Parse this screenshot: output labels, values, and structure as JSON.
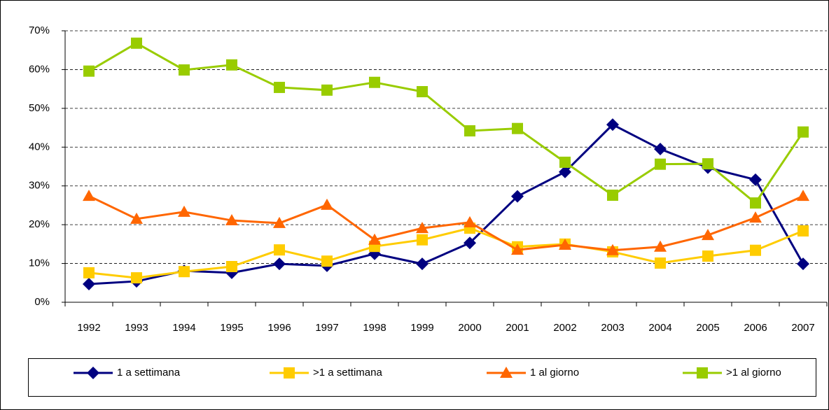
{
  "chart_data": {
    "type": "line",
    "categories": [
      "1992",
      "1993",
      "1994",
      "1995",
      "1996",
      "1997",
      "1998",
      "1999",
      "2000",
      "2001",
      "2002",
      "2003",
      "2004",
      "2005",
      "2006",
      "2007"
    ],
    "series": [
      {
        "name": "1 a settimana",
        "color": "#000080",
        "marker": "diamond",
        "values": [
          4.7,
          5.4,
          8.1,
          7.6,
          9.9,
          9.4,
          12.5,
          9.9,
          15.3,
          27.3,
          33.6,
          45.8,
          39.5,
          34.7,
          31.6,
          9.9
        ]
      },
      {
        "name": ">1 a settimana",
        "color": "#ffcc00",
        "marker": "square",
        "values": [
          7.6,
          6.3,
          7.9,
          9.2,
          13.5,
          10.6,
          14.4,
          16.1,
          19.1,
          14.3,
          15.0,
          13.0,
          10.1,
          11.9,
          13.4,
          18.4
        ]
      },
      {
        "name": "1 al giorno",
        "color": "#ff6600",
        "marker": "triangle",
        "values": [
          27.4,
          21.5,
          23.3,
          21.1,
          20.4,
          25.1,
          16.1,
          19.1,
          20.6,
          13.5,
          14.8,
          13.4,
          14.3,
          17.3,
          21.8,
          27.4
        ]
      },
      {
        "name": ">1 al giorno",
        "color": "#99cc00",
        "marker": "square",
        "values": [
          59.6,
          66.8,
          59.9,
          61.2,
          55.4,
          54.7,
          56.7,
          54.3,
          44.2,
          44.8,
          36.1,
          27.6,
          35.6,
          35.7,
          25.6,
          43.9
        ]
      }
    ],
    "ylim": [
      0,
      70
    ],
    "yticks": [
      {
        "value": 0,
        "label": "0%"
      },
      {
        "value": 10,
        "label": "10%"
      },
      {
        "value": 20,
        "label": "20%"
      },
      {
        "value": 30,
        "label": "30%"
      },
      {
        "value": 40,
        "label": "40%"
      },
      {
        "value": 50,
        "label": "50%"
      },
      {
        "value": 60,
        "label": "60%"
      },
      {
        "value": 70,
        "label": "70%"
      }
    ],
    "grid": true,
    "legend": "bottom"
  }
}
